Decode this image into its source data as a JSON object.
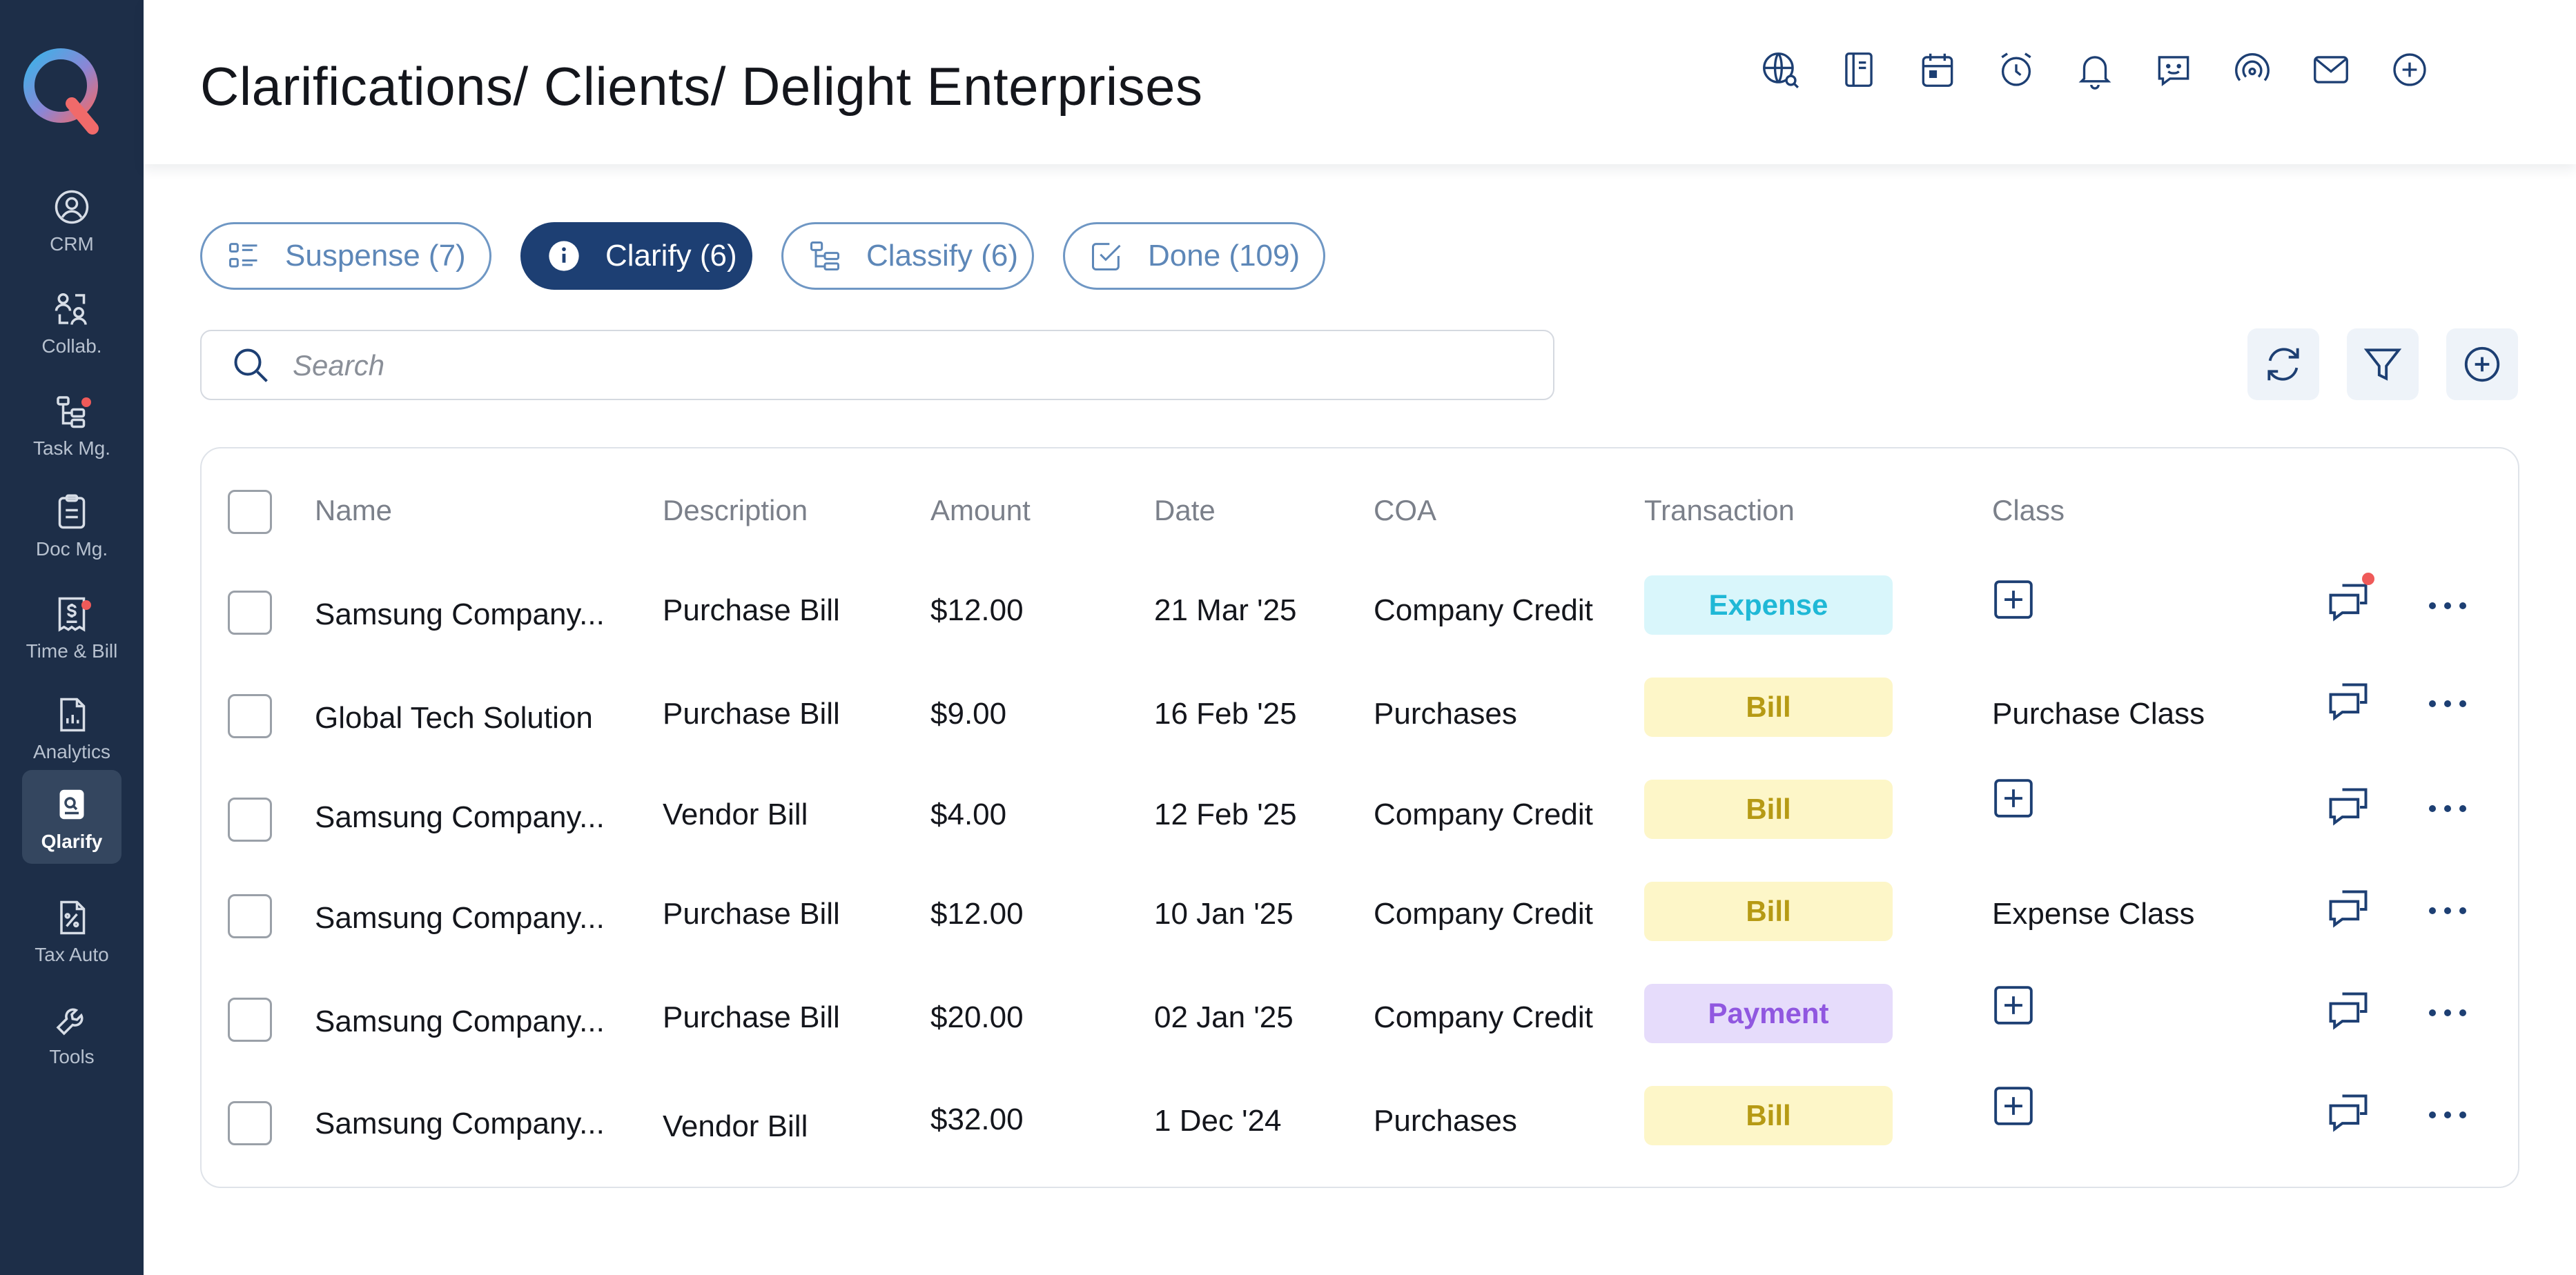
{
  "sidebar": {
    "items": [
      {
        "label": "CRM",
        "icon": "user-circle-icon"
      },
      {
        "label": "Collab.",
        "icon": "collab-icon"
      },
      {
        "label": "Task Mg.",
        "icon": "task-tree-icon"
      },
      {
        "label": "Doc Mg.",
        "icon": "clipboard-icon"
      },
      {
        "label": "Time & Bill",
        "icon": "receipt-dollar-icon"
      },
      {
        "label": "Analytics",
        "icon": "analytics-doc-icon"
      },
      {
        "label": "Qlarify",
        "icon": "qlarify-icon"
      },
      {
        "label": "Tax Auto",
        "icon": "tax-percent-icon"
      },
      {
        "label": "Tools",
        "icon": "wrench-icon"
      }
    ]
  },
  "header": {
    "title": "Clarifications/ Clients/ Delight Enterprises"
  },
  "tabs": [
    {
      "label": "Suspense (7)"
    },
    {
      "label": "Clarify (6)"
    },
    {
      "label": "Classify (6)"
    },
    {
      "label": "Done (109)"
    }
  ],
  "search": {
    "placeholder": "Search"
  },
  "table": {
    "columns": [
      "Name",
      "Description",
      "Amount",
      "Date",
      "COA",
      "Transaction",
      "Class"
    ],
    "rows": [
      {
        "name": "Samsung Company...",
        "description": "Purchase Bill",
        "amount": "$12.00",
        "date": "21 Mar  '25",
        "coa": "Company Credit",
        "transaction": "Expense",
        "class": ""
      },
      {
        "name": "Global Tech Solution",
        "description": "Purchase Bill",
        "amount": "$9.00",
        "date": "16 Feb '25",
        "coa": "Purchases",
        "transaction": "Bill",
        "class": "Purchase Class"
      },
      {
        "name": "Samsung Company...",
        "description": "Vendor Bill",
        "amount": "$4.00",
        "date": "12 Feb '25",
        "coa": "Company Credit",
        "transaction": "Bill",
        "class": ""
      },
      {
        "name": "Samsung Company...",
        "description": "Purchase Bill",
        "amount": "$12.00",
        "date": "10 Jan '25",
        "coa": "Company Credit",
        "transaction": "Bill",
        "class": "Expense Class"
      },
      {
        "name": "Samsung Company...",
        "description": "Purchase Bill",
        "amount": "$20.00",
        "date": "02 Jan '25",
        "coa": "Company Credit",
        "transaction": "Payment",
        "class": ""
      },
      {
        "name": "Samsung Company...",
        "description": "Vendor Bill",
        "amount": "$32.00",
        "date": "1 Dec '24",
        "coa": "Purchases",
        "transaction": "Bill",
        "class": ""
      }
    ]
  },
  "colors": {
    "sidebar_bg": "#1d2e48",
    "accent": "#1d3f73",
    "expense_bg": "#d9f6fb",
    "expense_fg": "#1fb8d6",
    "bill_bg": "#fdf6c8",
    "bill_fg": "#b69a14",
    "payment_bg": "#e6dcfb",
    "payment_fg": "#9057e0",
    "notification": "#ef5a59"
  }
}
